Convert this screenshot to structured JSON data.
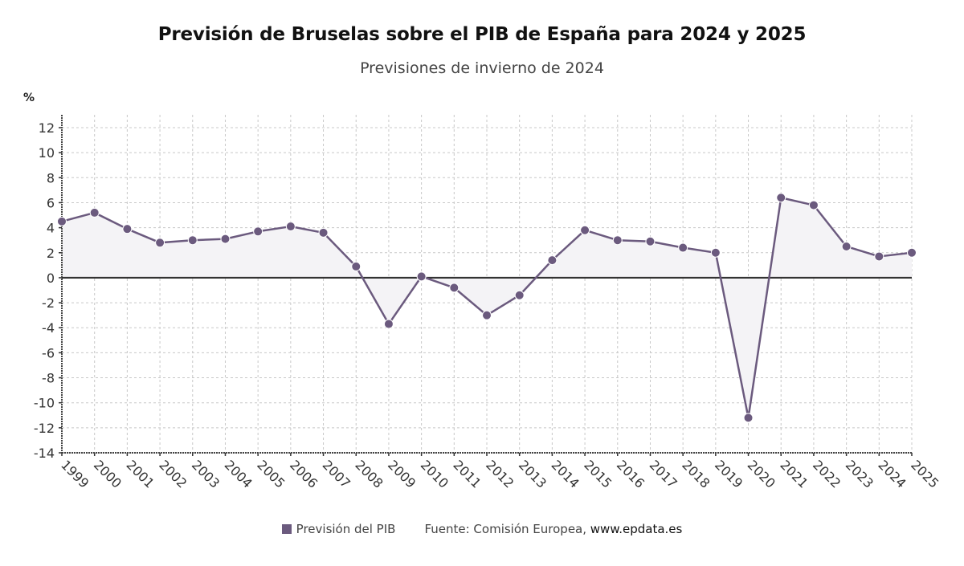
{
  "title": "Previsión de Bruselas sobre el PIB de España para 2024 y 2025",
  "subtitle": "Previsiones de invierno de 2024",
  "legend": {
    "series_label": "Previsión del PIB",
    "source_prefix": "Fuente: Comisión Europea, ",
    "source_link": "www.epdata.es"
  },
  "colors": {
    "series": "#6b5a7e",
    "area_fill": "#f4f3f6",
    "grid": "#c8c8c8",
    "zero_line": "#333333"
  },
  "chart_data": {
    "type": "line",
    "title": "Previsión de Bruselas sobre el PIB de España para 2024 y 2025",
    "subtitle": "Previsiones de invierno de 2024",
    "xlabel": "",
    "ylabel": "%",
    "ylim": [
      -14,
      12
    ],
    "yticks": [
      12,
      10,
      8,
      6,
      4,
      2,
      0,
      -2,
      -4,
      -6,
      -8,
      -10,
      -12,
      -14
    ],
    "grid": true,
    "legend_position": "bottom",
    "categories": [
      "1999",
      "2000",
      "2001",
      "2002",
      "2003",
      "2004",
      "2005",
      "2006",
      "2007",
      "2008",
      "2009",
      "2010",
      "2011",
      "2012",
      "2013",
      "2014",
      "2015",
      "2016",
      "2017",
      "2018",
      "2019",
      "2020",
      "2021",
      "2022",
      "2023",
      "2024",
      "2025"
    ],
    "series": [
      {
        "name": "Previsión del PIB",
        "values": [
          4.5,
          5.2,
          3.9,
          2.8,
          3.0,
          3.1,
          3.7,
          4.1,
          3.6,
          0.9,
          -3.7,
          0.1,
          -0.8,
          -3.0,
          -1.4,
          1.4,
          3.8,
          3.0,
          2.9,
          2.4,
          2.0,
          -11.2,
          6.4,
          5.8,
          2.5,
          1.7,
          2.0
        ]
      }
    ]
  }
}
